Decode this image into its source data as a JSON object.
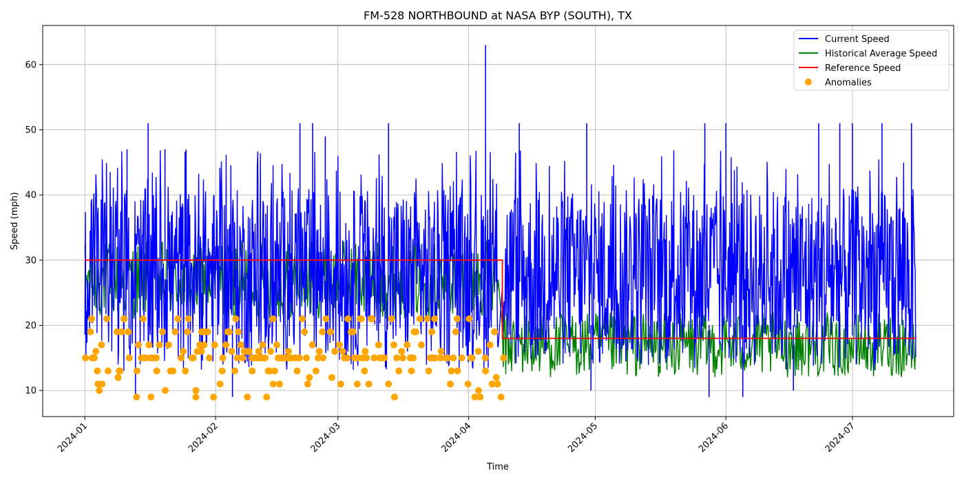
{
  "chart_data": {
    "type": "line",
    "title": "FM-528 NORTHBOUND at NASA BYP (SOUTH), TX",
    "xlabel": "Time",
    "ylabel": "Speed (mph)",
    "xlim": [
      "2023-12-22",
      "2024-07-25"
    ],
    "ylim": [
      6,
      66
    ],
    "x_ticks": [
      "2024-01",
      "2024-02",
      "2024-03",
      "2024-04",
      "2024-05",
      "2024-06",
      "2024-07"
    ],
    "y_ticks": [
      10,
      20,
      30,
      40,
      50,
      60
    ],
    "grid": true,
    "legend": {
      "placement": "top-right",
      "entries": [
        "Current Speed",
        "Historical Average Speed",
        "Reference Speed",
        "Anomalies"
      ]
    },
    "series": [
      {
        "name": "Current Speed",
        "color": "#0000ff",
        "description_ranges": [
          {
            "from": "2024-01-01",
            "to": "2024-04-08",
            "typical_min": 13,
            "typical_max": 41
          },
          {
            "from": "2024-04-09",
            "to": "2024-07-16",
            "typical_min": 13,
            "typical_max": 41
          }
        ],
        "notable_points": [
          {
            "x": "2024-01-16",
            "y": 51
          },
          {
            "x": "2024-01-20",
            "y": 47
          },
          {
            "x": "2024-01-11",
            "y": 47
          },
          {
            "x": "2024-02-21",
            "y": 51
          },
          {
            "x": "2024-02-24",
            "y": 51
          },
          {
            "x": "2024-02-27",
            "y": 49
          },
          {
            "x": "2024-03-13",
            "y": 51
          },
          {
            "x": "2024-04-05",
            "y": 63
          },
          {
            "x": "2024-04-13",
            "y": 51
          },
          {
            "x": "2024-04-29",
            "y": 51
          },
          {
            "x": "2024-05-27",
            "y": 51
          },
          {
            "x": "2024-06-01",
            "y": 51
          },
          {
            "x": "2024-06-23",
            "y": 51
          },
          {
            "x": "2024-06-28",
            "y": 51
          },
          {
            "x": "2024-07-01",
            "y": 51
          },
          {
            "x": "2024-07-08",
            "y": 51
          },
          {
            "x": "2024-07-15",
            "y": 51
          },
          {
            "x": "2024-01-13",
            "y": 9
          },
          {
            "x": "2024-02-05",
            "y": 9
          },
          {
            "x": "2024-04-30",
            "y": 10
          },
          {
            "x": "2024-05-28",
            "y": 9
          },
          {
            "x": "2024-06-05",
            "y": 9
          },
          {
            "x": "2024-06-17",
            "y": 10
          }
        ]
      },
      {
        "name": "Historical Average Speed",
        "color": "#008000",
        "description_ranges": [
          {
            "from": "2024-01-01",
            "to": "2024-04-08",
            "typical_min": 21,
            "typical_max": 33
          },
          {
            "from": "2024-04-09",
            "to": "2024-07-16",
            "typical_min": 12,
            "typical_max": 22
          }
        ]
      },
      {
        "name": "Reference Speed",
        "color": "#ff0000",
        "points": [
          {
            "x": "2024-01-01",
            "y": 30
          },
          {
            "x": "2024-04-09",
            "y": 30
          },
          {
            "x": "2024-04-09",
            "y": 18
          },
          {
            "x": "2024-07-16",
            "y": 18
          }
        ]
      },
      {
        "name": "Anomalies",
        "color": "#ffa500",
        "marker": "circle",
        "range": {
          "from": "2024-01-01",
          "to": "2024-04-09",
          "min": 9,
          "max": 21
        },
        "levels": [
          9,
          10,
          11,
          12,
          13,
          15,
          16,
          17,
          19,
          21
        ]
      }
    ]
  }
}
